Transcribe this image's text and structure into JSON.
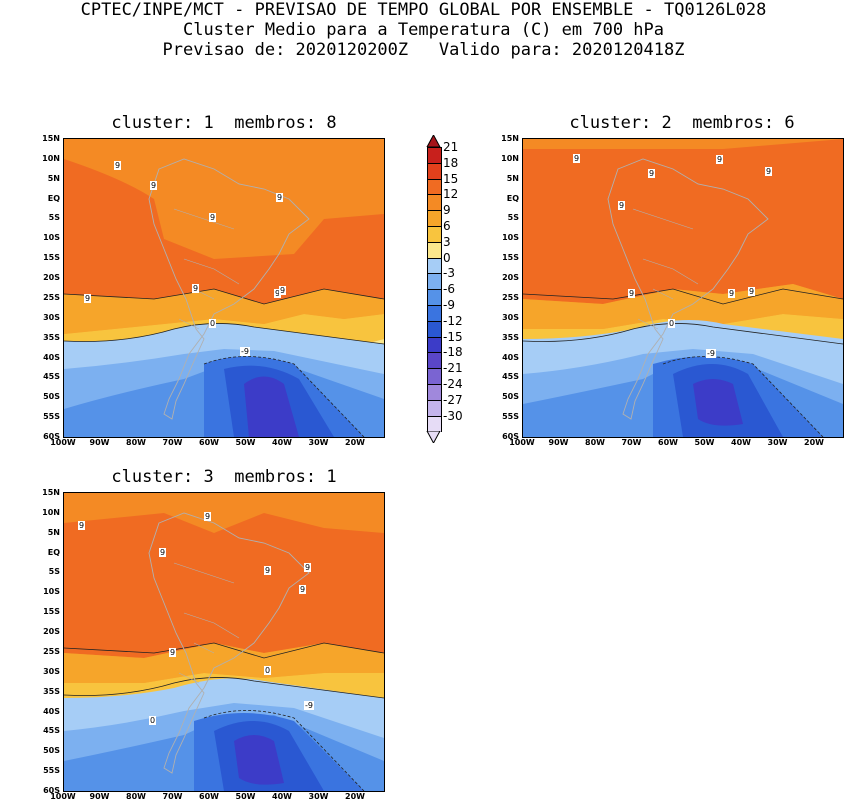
{
  "header": {
    "line1": "CPTEC/INPE/MCT - PREVISAO DE TEMPO GLOBAL POR ENSEMBLE - TQ0126L028",
    "line2": "Cluster Medio para a Temperatura (C) em 700 hPa",
    "line3": "Previsao de: 2020120200Z   Valido para: 2020120418Z"
  },
  "panels": [
    {
      "title": "cluster: 1  membros: 8",
      "contour_labels": [
        "9",
        "9",
        "9",
        "9",
        "9",
        "9",
        "9",
        "9",
        "0",
        "-9"
      ]
    },
    {
      "title": "cluster: 2  membros: 6",
      "contour_labels": [
        "9",
        "9",
        "9",
        "9",
        "9",
        "9",
        "9",
        "9",
        "0",
        "-9"
      ]
    },
    {
      "title": "cluster: 3  membros: 1",
      "contour_labels": [
        "9",
        "9",
        "9",
        "9",
        "9",
        "9",
        "9",
        "0",
        "0",
        "-9"
      ]
    }
  ],
  "axes": {
    "lat_labels": [
      "15N",
      "10N",
      "5N",
      "EQ",
      "5S",
      "10S",
      "15S",
      "20S",
      "25S",
      "30S",
      "35S",
      "40S",
      "45S",
      "50S",
      "55S",
      "60S"
    ],
    "lon_labels": [
      "100W",
      "90W",
      "80W",
      "70W",
      "60W",
      "50W",
      "40W",
      "30W",
      "20W"
    ]
  },
  "colorbar": {
    "labels": [
      "21",
      "18",
      "15",
      "12",
      "9",
      "6",
      "3",
      "0",
      "-3",
      "-6",
      "-9",
      "-12",
      "-15",
      "-18",
      "-21",
      "-24",
      "-27",
      "-30"
    ],
    "colors": [
      "#a5141a",
      "#c8201c",
      "#e2401c",
      "#f06b22",
      "#f48a24",
      "#f6a52a",
      "#f8c43e",
      "#fbe78c",
      "#a6cdf6",
      "#7cb0f0",
      "#5592e8",
      "#3a74e0",
      "#2a58d2",
      "#3c3cc8",
      "#5a46c8",
      "#7a64d2",
      "#a088dc",
      "#c4b4ec",
      "#e6dcf6"
    ]
  }
}
